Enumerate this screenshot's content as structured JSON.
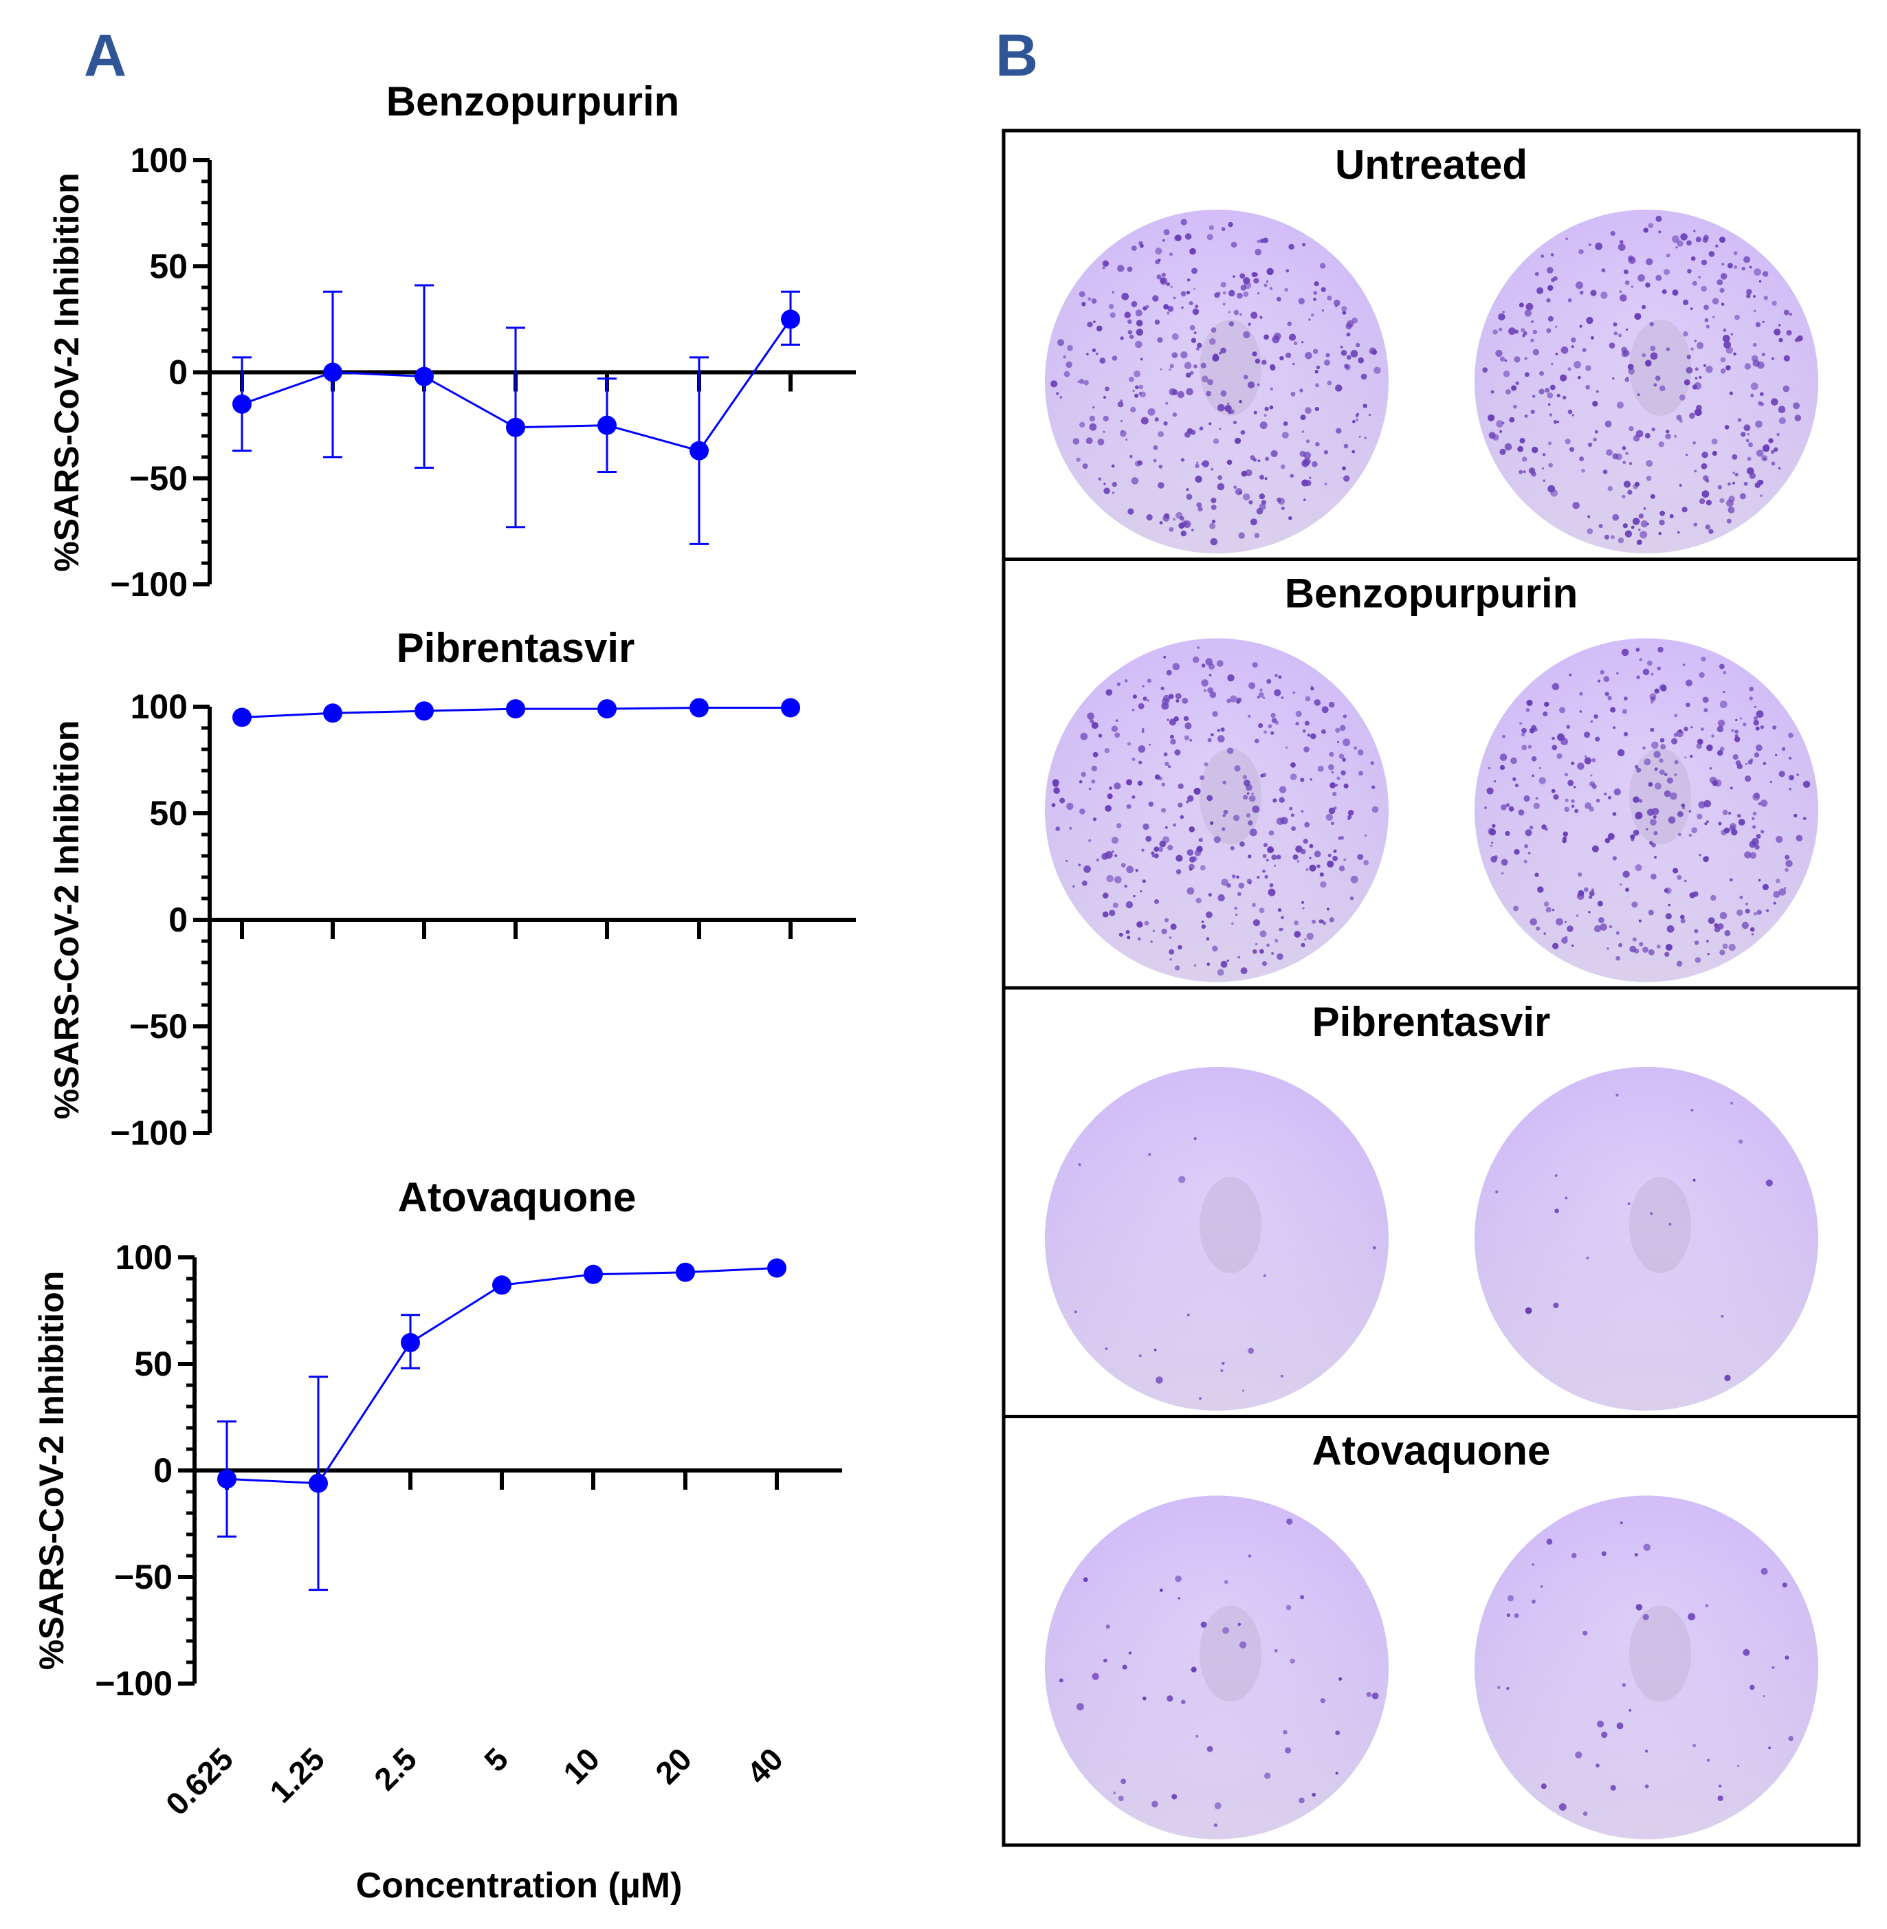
{
  "panel_labels": {
    "a": "A",
    "b": "B"
  },
  "chart_data": [
    {
      "type": "line",
      "title": "Benzopurpurin",
      "ylabel": "%SARS-CoV-2 Inhibition",
      "xlabel": "Concentration (µM)",
      "categories": [
        "0.625",
        "1.25",
        "2.5",
        "5",
        "10",
        "20",
        "40"
      ],
      "values": [
        -15,
        0,
        -2,
        -26,
        -25,
        -37,
        25
      ],
      "error_low": [
        -37,
        -40,
        -45,
        -73,
        -47,
        -81,
        13
      ],
      "error_high": [
        7,
        38,
        41,
        21,
        -3,
        7,
        38
      ],
      "yticks": [
        "100",
        "50",
        "0",
        "−50",
        "−100"
      ],
      "ylim": [
        -100,
        100
      ],
      "color": "#0000ff"
    },
    {
      "type": "line",
      "title": "Pibrentasvir",
      "ylabel": "%SARS-CoV-2 Inhibition",
      "xlabel": "Concentration (µM)",
      "categories": [
        "0.625",
        "1.25",
        "2.5",
        "5",
        "10",
        "20",
        "40"
      ],
      "values": [
        95,
        97,
        98,
        99,
        99,
        99.5,
        99.5
      ],
      "yticks": [
        "100",
        "50",
        "0",
        "−50",
        "−100"
      ],
      "ylim": [
        -100,
        100
      ],
      "color": "#0000ff"
    },
    {
      "type": "line",
      "title": "Atovaquone",
      "ylabel": "%SARS-CoV-2 Inhibition",
      "xlabel": "Concentration (µM)",
      "categories": [
        "0.625",
        "1.25",
        "2.5",
        "5",
        "10",
        "20",
        "40"
      ],
      "values": [
        -4,
        -6,
        60,
        87,
        92,
        93,
        95
      ],
      "error_low": [
        -31,
        -56,
        48,
        87,
        92,
        93,
        95
      ],
      "error_high": [
        23,
        44,
        73,
        87,
        92,
        93,
        95
      ],
      "yticks": [
        "100",
        "50",
        "0",
        "−50",
        "−100"
      ],
      "ylim": [
        -100,
        100
      ],
      "color": "#0000ff"
    }
  ],
  "x_axis": {
    "ticks": [
      "0.625",
      "1.25",
      "2.5",
      "5",
      "10",
      "20",
      "40"
    ],
    "label": "Concentration (µM)"
  },
  "plates": {
    "sections": [
      {
        "title": "Untreated",
        "plaque_density": 1.0
      },
      {
        "title": "Benzopurpurin",
        "plaque_density": 1.0
      },
      {
        "title": "Pibrentasvir",
        "plaque_density": 0.02
      },
      {
        "title": "Atovaquone",
        "plaque_density": 0.12
      }
    ],
    "well_color": "#d9c9f5",
    "plaque_color": "#6a3fb8"
  }
}
